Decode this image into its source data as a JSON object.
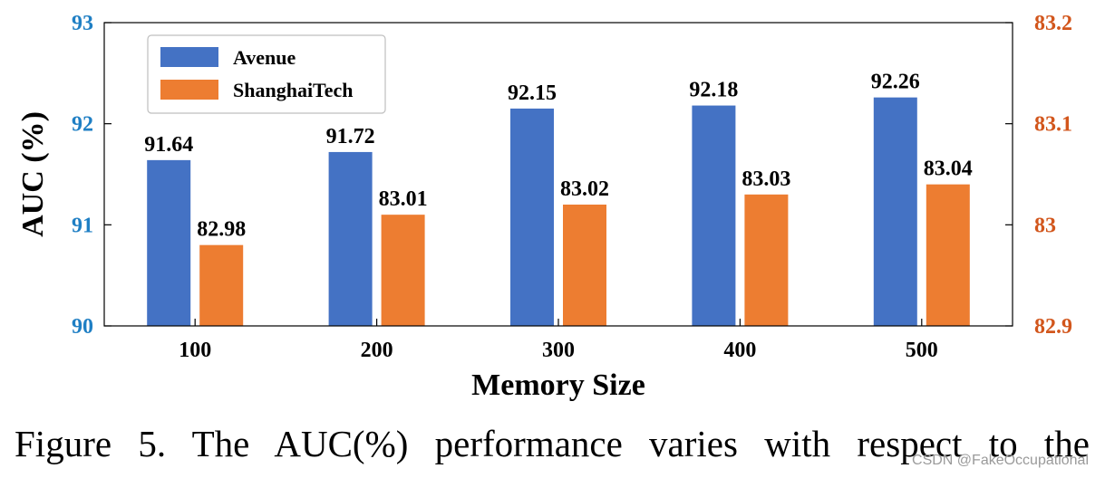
{
  "chart_data": {
    "type": "bar",
    "categories": [
      "100",
      "200",
      "300",
      "400",
      "500"
    ],
    "xlabel": "Memory Size",
    "ylabel": "AUC (%)",
    "y_left": {
      "lim": [
        90,
        93
      ],
      "ticks": [
        "90",
        "91",
        "92",
        "93"
      ],
      "color": "#1f7fc4"
    },
    "y_right": {
      "lim": [
        82.9,
        83.2
      ],
      "ticks": [
        "82.9",
        "83",
        "83.1",
        "83.2"
      ],
      "color": "#d2561c"
    },
    "grid": false,
    "legend_position": "top-left",
    "series": [
      {
        "name": "Avenue",
        "axis": "left",
        "color": "#4472c4",
        "values": [
          91.64,
          91.72,
          92.15,
          92.18,
          92.26
        ],
        "labels": [
          "91.64",
          "91.72",
          "92.15",
          "92.18",
          "92.26"
        ]
      },
      {
        "name": "ShanghaiTech",
        "axis": "right",
        "color": "#ed7d31",
        "values": [
          82.98,
          83.01,
          83.02,
          83.03,
          83.04
        ],
        "labels": [
          "82.98",
          "83.01",
          "83.02",
          "83.03",
          "83.04"
        ]
      }
    ]
  },
  "caption": "Figure 5.  The AUC(%) performance varies with respect to the",
  "watermark": "CSDN @FakeOccupational"
}
